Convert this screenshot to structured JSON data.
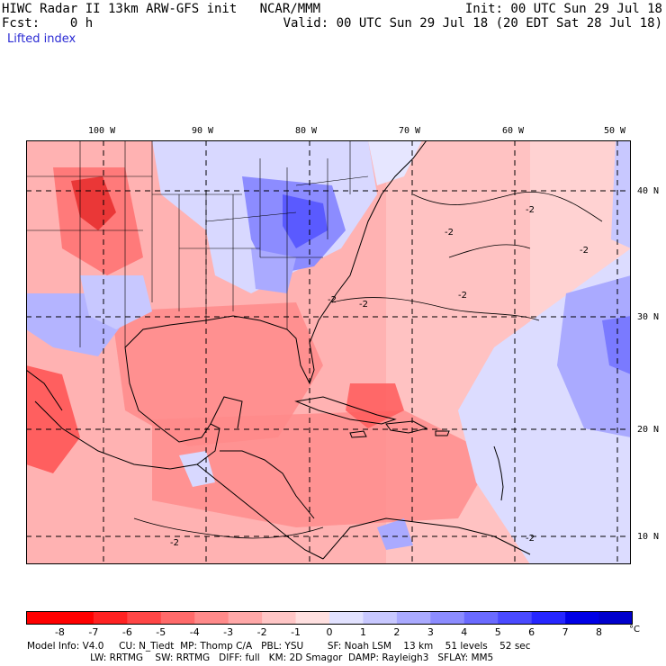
{
  "header": {
    "line1_left": "HIWC Radar II 13km ARW-GFS init   NCAR/MMM",
    "line1_right": "Init: 00 UTC Sun 29 Jul 18",
    "line2_left": "Fcst:    0 h",
    "line2_right": "Valid: 00 UTC Sun 29 Jul 18 (20 EDT Sat 28 Jul 18)",
    "field_name": "Lifted index"
  },
  "map": {
    "longitude_labels": [
      "100 W",
      "90 W",
      "80 W",
      "70 W",
      "60 W",
      "50 W"
    ],
    "latitude_labels": [
      "40 N",
      "30 N",
      "20 N",
      "10 N"
    ],
    "contour_labels": [
      "-2",
      "-2",
      "-2",
      "-2",
      "-2",
      "-2",
      "-2",
      "-2"
    ]
  },
  "colorbar": {
    "tick_labels": [
      "-8",
      "-7",
      "-6",
      "-5",
      "-4",
      "-3",
      "-2",
      "-1",
      "0",
      "1",
      "2",
      "3",
      "4",
      "5",
      "6",
      "7",
      "8"
    ],
    "unit": "°C",
    "colors": [
      "#ff0000",
      "#ff2222",
      "#ff4646",
      "#ff6a6a",
      "#ff8a8a",
      "#ffa8a8",
      "#ffc6c6",
      "#ffe0e0",
      "#ffffff",
      "#e2e2ff",
      "#c8c8ff",
      "#aaaaff",
      "#8c8cff",
      "#6a6aff",
      "#4a4aff",
      "#2626ff",
      "#0000e6"
    ]
  },
  "footer": {
    "line1": "Model Info: V4.0     CU: N_Tiedt  MP: Thomp C/A   PBL: YSU        SF: Noah LSM    13 km    51 levels    52 sec",
    "line2": "                     LW: RRTMG    SW: RRTMG   DIFF: full   KM: 2D Smagor  DAMP: Rayleigh3   SFLAY: MM5"
  }
}
